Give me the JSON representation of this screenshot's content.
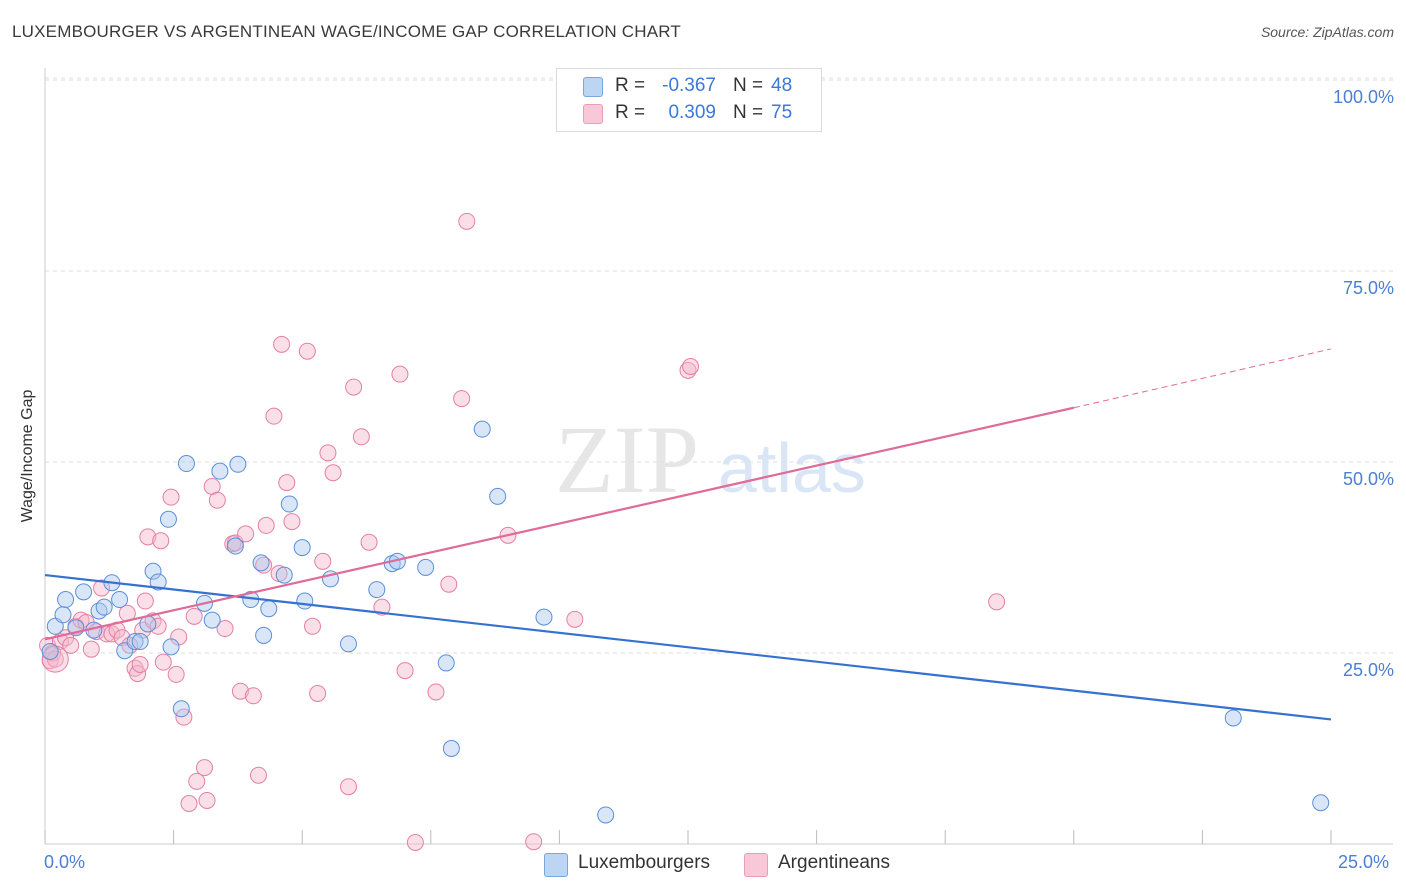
{
  "title": "LUXEMBOURGER VS ARGENTINEAN WAGE/INCOME GAP CORRELATION CHART",
  "source": "Source: ZipAtlas.com",
  "watermark": {
    "zip": "ZIP",
    "atlas": "atlas"
  },
  "colors": {
    "blue_fill": "#a8c8f0",
    "blue_stroke": "#5b8fd8",
    "blue_line": "#3572d0",
    "pink_fill": "#f5b8cc",
    "pink_stroke": "#e57fa3",
    "pink_line": "#e06a98",
    "tick_text": "#4a7fd4",
    "grid": "#dddddd"
  },
  "legend": {
    "rows": [
      {
        "r_label": "R =",
        "r_value": "-0.367",
        "n_label": "N =",
        "n_value": "48"
      },
      {
        "r_label": "R =",
        "r_value": "0.309",
        "n_label": "N =",
        "n_value": "75"
      }
    ]
  },
  "bottom_legend": {
    "series1": "Luxembourgers",
    "series2": "Argentineans"
  },
  "chart_data": {
    "type": "scatter",
    "title": "LUXEMBOURGER VS ARGENTINEAN WAGE/INCOME GAP CORRELATION CHART",
    "xlabel": "",
    "ylabel": "Wage/Income Gap",
    "xlim": [
      0,
      25
    ],
    "ylim": [
      0,
      100
    ],
    "x_tick_labels": [
      "0.0%",
      "25.0%"
    ],
    "y_tick_labels": [
      "100.0%",
      "75.0%",
      "50.0%",
      "25.0%"
    ],
    "y_ticks": [
      100,
      75,
      50,
      25
    ],
    "grid": "horizontal dashed",
    "legend_placement": "top-center",
    "series": [
      {
        "name": "Luxembourgers",
        "r": -0.367,
        "n": 48,
        "trend": {
          "x": [
            0,
            25
          ],
          "y": [
            35.2,
            16.3
          ]
        },
        "points": [
          [
            0.1,
            25.2
          ],
          [
            0.2,
            28.5
          ],
          [
            0.4,
            32.0
          ],
          [
            0.35,
            30.0
          ],
          [
            0.6,
            28.3
          ],
          [
            0.75,
            33.0
          ],
          [
            0.95,
            28.0
          ],
          [
            1.05,
            30.5
          ],
          [
            1.15,
            31.0
          ],
          [
            1.3,
            34.2
          ],
          [
            1.45,
            32.0
          ],
          [
            1.55,
            25.3
          ],
          [
            1.75,
            26.5
          ],
          [
            1.85,
            26.5
          ],
          [
            2.0,
            28.8
          ],
          [
            2.1,
            35.7
          ],
          [
            2.2,
            34.3
          ],
          [
            2.4,
            42.5
          ],
          [
            2.45,
            25.8
          ],
          [
            2.65,
            17.7
          ],
          [
            2.75,
            49.8
          ],
          [
            3.1,
            31.5
          ],
          [
            3.25,
            29.3
          ],
          [
            3.4,
            48.8
          ],
          [
            3.7,
            39.0
          ],
          [
            3.75,
            49.7
          ],
          [
            4.0,
            32.0
          ],
          [
            4.2,
            36.8
          ],
          [
            4.25,
            27.3
          ],
          [
            4.35,
            30.8
          ],
          [
            4.65,
            35.2
          ],
          [
            4.75,
            44.5
          ],
          [
            5.0,
            38.8
          ],
          [
            5.05,
            31.8
          ],
          [
            5.55,
            34.7
          ],
          [
            5.9,
            26.2
          ],
          [
            6.45,
            33.3
          ],
          [
            6.75,
            36.7
          ],
          [
            6.85,
            37.0
          ],
          [
            7.4,
            36.2
          ],
          [
            7.8,
            23.7
          ],
          [
            7.9,
            12.5
          ],
          [
            8.5,
            54.3
          ],
          [
            8.8,
            45.5
          ],
          [
            9.7,
            29.7
          ],
          [
            10.9,
            3.8
          ],
          [
            23.1,
            16.5
          ],
          [
            24.8,
            5.4
          ]
        ]
      },
      {
        "name": "Argentineans",
        "r": 0.309,
        "n": 75,
        "trend": {
          "x": [
            0,
            20
          ],
          "y": [
            26.8,
            57.1
          ]
        },
        "trend_dashed": {
          "x": [
            20,
            25
          ],
          "y": [
            57.1,
            64.8
          ]
        },
        "points": [
          [
            0.05,
            26.0
          ],
          [
            0.1,
            24.0
          ],
          [
            0.15,
            25.0
          ],
          [
            0.2,
            24.2
          ],
          [
            0.3,
            26.5
          ],
          [
            0.4,
            27.0
          ],
          [
            0.5,
            26.0
          ],
          [
            0.6,
            28.5
          ],
          [
            0.7,
            29.3
          ],
          [
            0.8,
            29.0
          ],
          [
            0.9,
            25.5
          ],
          [
            1.0,
            27.8
          ],
          [
            1.1,
            33.5
          ],
          [
            1.2,
            27.5
          ],
          [
            1.3,
            27.5
          ],
          [
            1.4,
            28.0
          ],
          [
            1.5,
            27.0
          ],
          [
            1.6,
            30.2
          ],
          [
            1.65,
            26.0
          ],
          [
            1.75,
            23.0
          ],
          [
            1.8,
            22.3
          ],
          [
            1.85,
            23.5
          ],
          [
            1.9,
            28.0
          ],
          [
            1.95,
            31.8
          ],
          [
            2.0,
            40.2
          ],
          [
            2.1,
            29.2
          ],
          [
            2.2,
            28.5
          ],
          [
            2.25,
            39.7
          ],
          [
            2.3,
            23.8
          ],
          [
            2.45,
            45.4
          ],
          [
            2.55,
            22.2
          ],
          [
            2.6,
            27.1
          ],
          [
            2.7,
            16.6
          ],
          [
            2.8,
            5.3
          ],
          [
            2.9,
            29.8
          ],
          [
            2.95,
            8.2
          ],
          [
            3.1,
            10.0
          ],
          [
            3.15,
            5.7
          ],
          [
            3.25,
            46.8
          ],
          [
            3.35,
            45.0
          ],
          [
            3.5,
            28.2
          ],
          [
            3.65,
            39.3
          ],
          [
            3.7,
            39.4
          ],
          [
            3.8,
            20.0
          ],
          [
            3.9,
            40.6
          ],
          [
            4.05,
            19.4
          ],
          [
            4.15,
            9.0
          ],
          [
            4.25,
            36.5
          ],
          [
            4.3,
            41.7
          ],
          [
            4.45,
            56.0
          ],
          [
            4.55,
            35.4
          ],
          [
            4.6,
            65.4
          ],
          [
            4.7,
            47.3
          ],
          [
            4.8,
            42.2
          ],
          [
            5.1,
            64.5
          ],
          [
            5.2,
            28.5
          ],
          [
            5.3,
            19.7
          ],
          [
            5.4,
            37.0
          ],
          [
            5.5,
            51.2
          ],
          [
            5.6,
            48.6
          ],
          [
            5.9,
            7.5
          ],
          [
            6.0,
            59.8
          ],
          [
            6.15,
            53.3
          ],
          [
            6.3,
            39.5
          ],
          [
            6.55,
            31.0
          ],
          [
            6.9,
            61.5
          ],
          [
            7.0,
            22.7
          ],
          [
            7.6,
            19.9
          ],
          [
            7.85,
            34.0
          ],
          [
            8.1,
            58.3
          ],
          [
            8.2,
            81.5
          ],
          [
            9.0,
            40.4
          ],
          [
            9.5,
            0.3
          ],
          [
            10.3,
            29.4
          ],
          [
            18.5,
            31.7
          ]
        ],
        "extra_points": [
          [
            7.2,
            0.2
          ],
          [
            12.5,
            62.0
          ],
          [
            12.55,
            62.5
          ]
        ]
      }
    ]
  }
}
